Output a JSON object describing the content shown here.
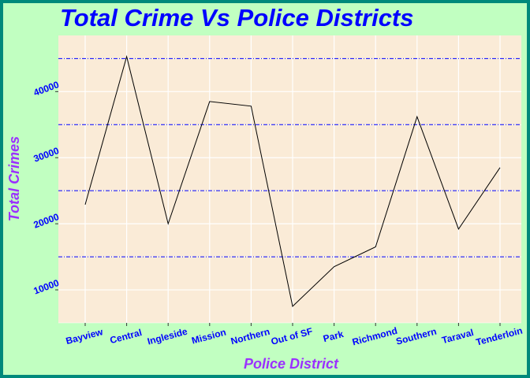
{
  "chart_data": {
    "type": "line",
    "title": "Total Crime Vs Police Districts",
    "xlabel": "Police District",
    "ylabel": "Total Crimes",
    "categories": [
      "Bayview",
      "Central",
      "Ingleside",
      "Mission",
      "Northern",
      "Out of SF",
      "Park",
      "Richmond",
      "Southern",
      "Taraval",
      "Tenderloin"
    ],
    "values": [
      22900,
      45300,
      20000,
      38500,
      37800,
      7500,
      13500,
      16500,
      36200,
      19200,
      28500
    ],
    "ylim": [
      5000,
      48500
    ],
    "yticks": [
      10000,
      20000,
      30000,
      40000
    ],
    "ytick_labels": [
      "10000",
      "20000",
      "30000",
      "40000"
    ],
    "reference_lines": [
      15000,
      25000,
      35000,
      45000
    ],
    "grid": true
  },
  "colors": {
    "panel": "#faebd7",
    "frame_bg": "#c1ffc1",
    "border": "#00897b",
    "line": "#000000",
    "reference_line": "#0000ff",
    "title": "#0000ff",
    "axis_title": "#9b30ff",
    "tick_label": "#0000ff",
    "grid": "#ffffff"
  }
}
